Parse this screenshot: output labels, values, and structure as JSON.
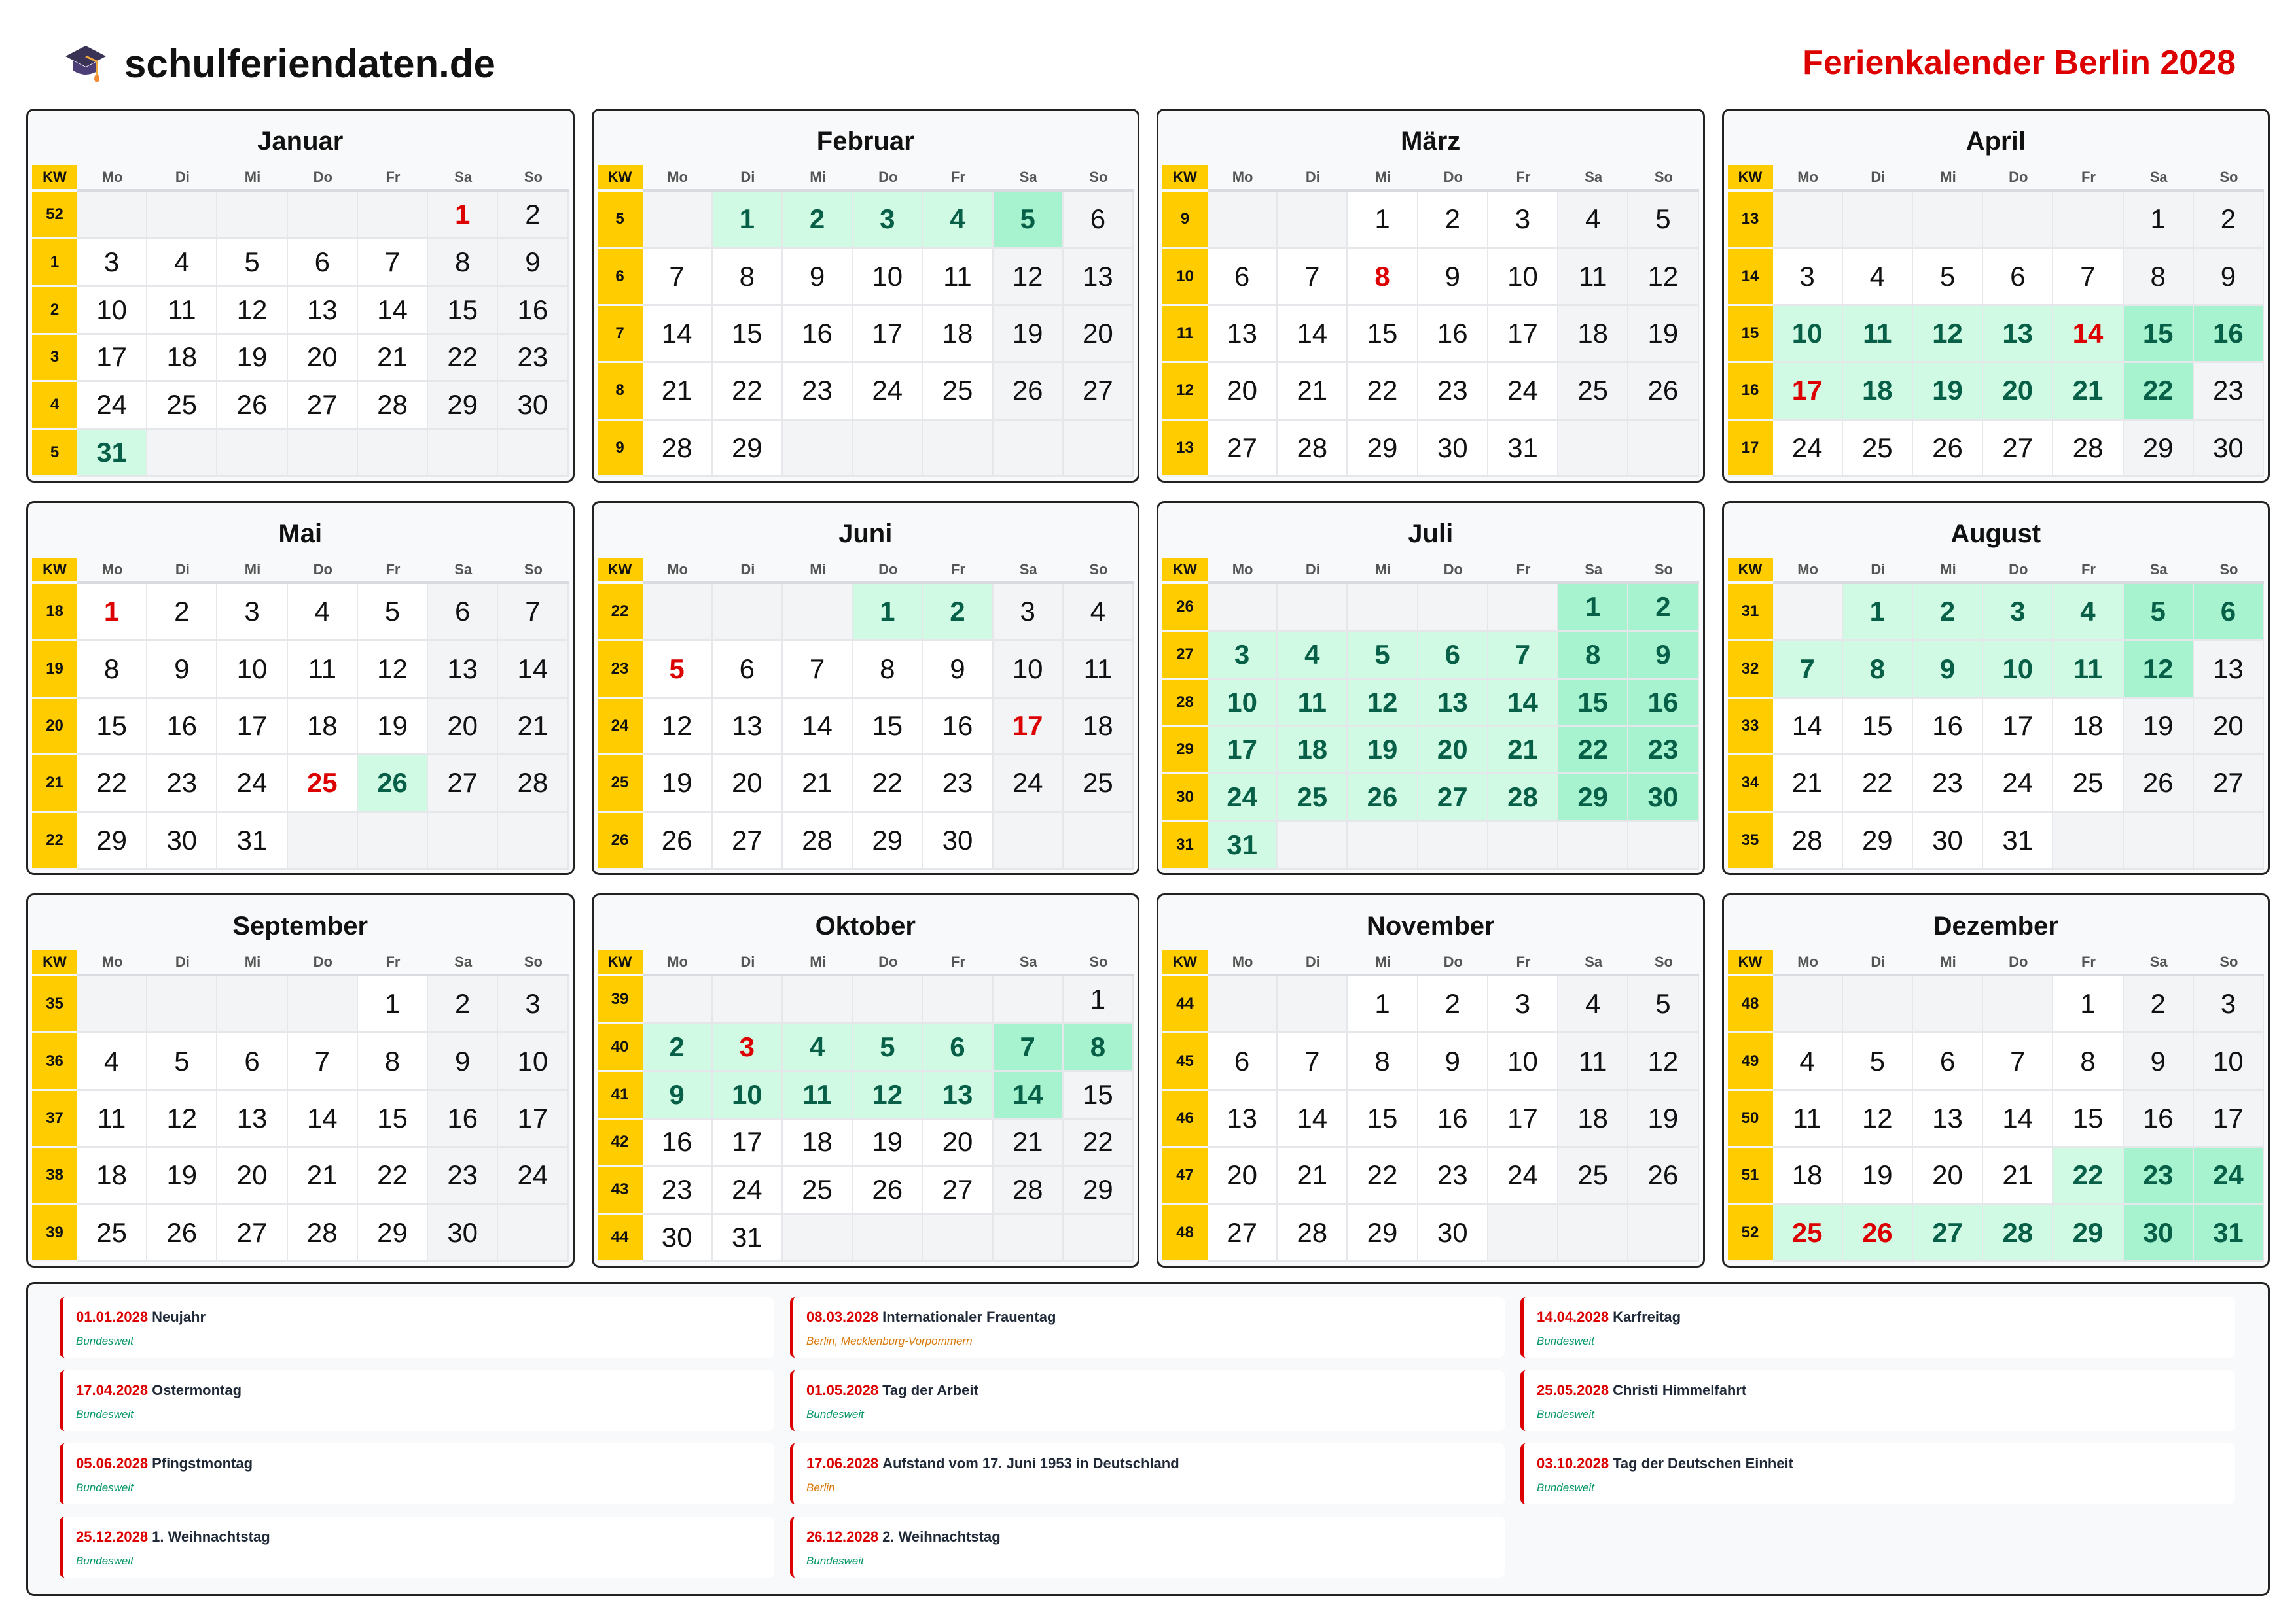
{
  "header": {
    "logo_text": "schulferiendaten.de",
    "logo_icon": "graduation-cap-icon",
    "title": "Ferienkalender Berlin 2028"
  },
  "colors": {
    "title": "#dc0000",
    "holiday": "#dc0000",
    "kw": "#ffcc00",
    "vacation": "#d1fae5",
    "vacation_weekend": "#a7f3d0",
    "vacation_text": "#065f46",
    "weekend": "#f3f4f6",
    "region_bundesweit": "#059669",
    "region_state": "#d97706"
  },
  "weekday_headers": [
    "KW",
    "Mo",
    "Di",
    "Mi",
    "Do",
    "Fr",
    "Sa",
    "So"
  ],
  "months": [
    {
      "name": "Januar",
      "vacation": [
        31
      ],
      "holidays": [
        1
      ],
      "weeks": [
        {
          "kw": "52",
          "days": [
            null,
            null,
            null,
            null,
            null,
            "1",
            "2"
          ]
        },
        {
          "kw": "1",
          "days": [
            "3",
            "4",
            "5",
            "6",
            "7",
            "8",
            "9"
          ]
        },
        {
          "kw": "2",
          "days": [
            "10",
            "11",
            "12",
            "13",
            "14",
            "15",
            "16"
          ]
        },
        {
          "kw": "3",
          "days": [
            "17",
            "18",
            "19",
            "20",
            "21",
            "22",
            "23"
          ]
        },
        {
          "kw": "4",
          "days": [
            "24",
            "25",
            "26",
            "27",
            "28",
            "29",
            "30"
          ]
        },
        {
          "kw": "5",
          "days": [
            "31",
            null,
            null,
            null,
            null,
            null,
            null
          ]
        }
      ]
    },
    {
      "name": "Februar",
      "vacation": [
        1,
        2,
        3,
        4,
        5
      ],
      "holidays": [],
      "weeks": [
        {
          "kw": "5",
          "days": [
            null,
            "1",
            "2",
            "3",
            "4",
            "5",
            "6"
          ]
        },
        {
          "kw": "6",
          "days": [
            "7",
            "8",
            "9",
            "10",
            "11",
            "12",
            "13"
          ]
        },
        {
          "kw": "7",
          "days": [
            "14",
            "15",
            "16",
            "17",
            "18",
            "19",
            "20"
          ]
        },
        {
          "kw": "8",
          "days": [
            "21",
            "22",
            "23",
            "24",
            "25",
            "26",
            "27"
          ]
        },
        {
          "kw": "9",
          "days": [
            "28",
            "29",
            null,
            null,
            null,
            null,
            null
          ]
        }
      ]
    },
    {
      "name": "März",
      "vacation": [],
      "holidays": [
        8
      ],
      "weeks": [
        {
          "kw": "9",
          "days": [
            null,
            null,
            "1",
            "2",
            "3",
            "4",
            "5"
          ]
        },
        {
          "kw": "10",
          "days": [
            "6",
            "7",
            "8",
            "9",
            "10",
            "11",
            "12"
          ]
        },
        {
          "kw": "11",
          "days": [
            "13",
            "14",
            "15",
            "16",
            "17",
            "18",
            "19"
          ]
        },
        {
          "kw": "12",
          "days": [
            "20",
            "21",
            "22",
            "23",
            "24",
            "25",
            "26"
          ]
        },
        {
          "kw": "13",
          "days": [
            "27",
            "28",
            "29",
            "30",
            "31",
            null,
            null
          ]
        }
      ]
    },
    {
      "name": "April",
      "vacation": [
        10,
        11,
        12,
        13,
        14,
        15,
        16,
        17,
        18,
        19,
        20,
        21,
        22
      ],
      "holidays": [
        14,
        17
      ],
      "weeks": [
        {
          "kw": "13",
          "days": [
            null,
            null,
            null,
            null,
            null,
            "1",
            "2"
          ]
        },
        {
          "kw": "14",
          "days": [
            "3",
            "4",
            "5",
            "6",
            "7",
            "8",
            "9"
          ]
        },
        {
          "kw": "15",
          "days": [
            "10",
            "11",
            "12",
            "13",
            "14",
            "15",
            "16"
          ]
        },
        {
          "kw": "16",
          "days": [
            "17",
            "18",
            "19",
            "20",
            "21",
            "22",
            "23"
          ]
        },
        {
          "kw": "17",
          "days": [
            "24",
            "25",
            "26",
            "27",
            "28",
            "29",
            "30"
          ]
        }
      ]
    },
    {
      "name": "Mai",
      "vacation": [
        26
      ],
      "holidays": [
        1,
        25
      ],
      "weeks": [
        {
          "kw": "18",
          "days": [
            "1",
            "2",
            "3",
            "4",
            "5",
            "6",
            "7"
          ]
        },
        {
          "kw": "19",
          "days": [
            "8",
            "9",
            "10",
            "11",
            "12",
            "13",
            "14"
          ]
        },
        {
          "kw": "20",
          "days": [
            "15",
            "16",
            "17",
            "18",
            "19",
            "20",
            "21"
          ]
        },
        {
          "kw": "21",
          "days": [
            "22",
            "23",
            "24",
            "25",
            "26",
            "27",
            "28"
          ]
        },
        {
          "kw": "22",
          "days": [
            "29",
            "30",
            "31",
            null,
            null,
            null,
            null
          ]
        }
      ]
    },
    {
      "name": "Juni",
      "vacation": [
        1,
        2
      ],
      "holidays": [
        5,
        17
      ],
      "weeks": [
        {
          "kw": "22",
          "days": [
            null,
            null,
            null,
            "1",
            "2",
            "3",
            "4"
          ]
        },
        {
          "kw": "23",
          "days": [
            "5",
            "6",
            "7",
            "8",
            "9",
            "10",
            "11"
          ]
        },
        {
          "kw": "24",
          "days": [
            "12",
            "13",
            "14",
            "15",
            "16",
            "17",
            "18"
          ]
        },
        {
          "kw": "25",
          "days": [
            "19",
            "20",
            "21",
            "22",
            "23",
            "24",
            "25"
          ]
        },
        {
          "kw": "26",
          "days": [
            "26",
            "27",
            "28",
            "29",
            "30",
            null,
            null
          ]
        }
      ]
    },
    {
      "name": "Juli",
      "vacation": [
        1,
        2,
        3,
        4,
        5,
        6,
        7,
        8,
        9,
        10,
        11,
        12,
        13,
        14,
        15,
        16,
        17,
        18,
        19,
        20,
        21,
        22,
        23,
        24,
        25,
        26,
        27,
        28,
        29,
        30,
        31
      ],
      "holidays": [],
      "weeks": [
        {
          "kw": "26",
          "days": [
            null,
            null,
            null,
            null,
            null,
            "1",
            "2"
          ]
        },
        {
          "kw": "27",
          "days": [
            "3",
            "4",
            "5",
            "6",
            "7",
            "8",
            "9"
          ]
        },
        {
          "kw": "28",
          "days": [
            "10",
            "11",
            "12",
            "13",
            "14",
            "15",
            "16"
          ]
        },
        {
          "kw": "29",
          "days": [
            "17",
            "18",
            "19",
            "20",
            "21",
            "22",
            "23"
          ]
        },
        {
          "kw": "30",
          "days": [
            "24",
            "25",
            "26",
            "27",
            "28",
            "29",
            "30"
          ]
        },
        {
          "kw": "31",
          "days": [
            "31",
            null,
            null,
            null,
            null,
            null,
            null
          ]
        }
      ]
    },
    {
      "name": "August",
      "vacation": [
        1,
        2,
        3,
        4,
        5,
        6,
        7,
        8,
        9,
        10,
        11,
        12
      ],
      "holidays": [],
      "weeks": [
        {
          "kw": "31",
          "days": [
            null,
            "1",
            "2",
            "3",
            "4",
            "5",
            "6"
          ]
        },
        {
          "kw": "32",
          "days": [
            "7",
            "8",
            "9",
            "10",
            "11",
            "12",
            "13"
          ]
        },
        {
          "kw": "33",
          "days": [
            "14",
            "15",
            "16",
            "17",
            "18",
            "19",
            "20"
          ]
        },
        {
          "kw": "34",
          "days": [
            "21",
            "22",
            "23",
            "24",
            "25",
            "26",
            "27"
          ]
        },
        {
          "kw": "35",
          "days": [
            "28",
            "29",
            "30",
            "31",
            null,
            null,
            null
          ]
        }
      ]
    },
    {
      "name": "September",
      "vacation": [],
      "holidays": [],
      "weeks": [
        {
          "kw": "35",
          "days": [
            null,
            null,
            null,
            null,
            "1",
            "2",
            "3"
          ]
        },
        {
          "kw": "36",
          "days": [
            "4",
            "5",
            "6",
            "7",
            "8",
            "9",
            "10"
          ]
        },
        {
          "kw": "37",
          "days": [
            "11",
            "12",
            "13",
            "14",
            "15",
            "16",
            "17"
          ]
        },
        {
          "kw": "38",
          "days": [
            "18",
            "19",
            "20",
            "21",
            "22",
            "23",
            "24"
          ]
        },
        {
          "kw": "39",
          "days": [
            "25",
            "26",
            "27",
            "28",
            "29",
            "30",
            null
          ]
        }
      ]
    },
    {
      "name": "Oktober",
      "vacation": [
        2,
        3,
        4,
        5,
        6,
        7,
        8,
        9,
        10,
        11,
        12,
        13,
        14
      ],
      "holidays": [
        3
      ],
      "weeks": [
        {
          "kw": "39",
          "days": [
            null,
            null,
            null,
            null,
            null,
            null,
            "1"
          ]
        },
        {
          "kw": "40",
          "days": [
            "2",
            "3",
            "4",
            "5",
            "6",
            "7",
            "8"
          ]
        },
        {
          "kw": "41",
          "days": [
            "9",
            "10",
            "11",
            "12",
            "13",
            "14",
            "15"
          ]
        },
        {
          "kw": "42",
          "days": [
            "16",
            "17",
            "18",
            "19",
            "20",
            "21",
            "22"
          ]
        },
        {
          "kw": "43",
          "days": [
            "23",
            "24",
            "25",
            "26",
            "27",
            "28",
            "29"
          ]
        },
        {
          "kw": "44",
          "days": [
            "30",
            "31",
            null,
            null,
            null,
            null,
            null
          ]
        }
      ]
    },
    {
      "name": "November",
      "vacation": [],
      "holidays": [],
      "weeks": [
        {
          "kw": "44",
          "days": [
            null,
            null,
            "1",
            "2",
            "3",
            "4",
            "5"
          ]
        },
        {
          "kw": "45",
          "days": [
            "6",
            "7",
            "8",
            "9",
            "10",
            "11",
            "12"
          ]
        },
        {
          "kw": "46",
          "days": [
            "13",
            "14",
            "15",
            "16",
            "17",
            "18",
            "19"
          ]
        },
        {
          "kw": "47",
          "days": [
            "20",
            "21",
            "22",
            "23",
            "24",
            "25",
            "26"
          ]
        },
        {
          "kw": "48",
          "days": [
            "27",
            "28",
            "29",
            "30",
            null,
            null,
            null
          ]
        }
      ]
    },
    {
      "name": "Dezember",
      "vacation": [
        22,
        23,
        24,
        25,
        26,
        27,
        28,
        29,
        30,
        31
      ],
      "holidays": [
        25,
        26
      ],
      "weeks": [
        {
          "kw": "48",
          "days": [
            null,
            null,
            null,
            null,
            "1",
            "2",
            "3"
          ]
        },
        {
          "kw": "49",
          "days": [
            "4",
            "5",
            "6",
            "7",
            "8",
            "9",
            "10"
          ]
        },
        {
          "kw": "50",
          "days": [
            "11",
            "12",
            "13",
            "14",
            "15",
            "16",
            "17"
          ]
        },
        {
          "kw": "51",
          "days": [
            "18",
            "19",
            "20",
            "21",
            "22",
            "23",
            "24"
          ]
        },
        {
          "kw": "52",
          "days": [
            "25",
            "26",
            "27",
            "28",
            "29",
            "30",
            "31"
          ]
        }
      ]
    }
  ],
  "holidays_list": [
    {
      "date": "01.01.2028",
      "name": "Neujahr",
      "region": "Bundesweit",
      "nationwide": true
    },
    {
      "date": "08.03.2028",
      "name": "Internationaler Frauentag",
      "region": "Berlin, Mecklenburg-Vorpommern",
      "nationwide": false
    },
    {
      "date": "14.04.2028",
      "name": "Karfreitag",
      "region": "Bundesweit",
      "nationwide": true
    },
    {
      "date": "17.04.2028",
      "name": "Ostermontag",
      "region": "Bundesweit",
      "nationwide": true
    },
    {
      "date": "01.05.2028",
      "name": "Tag der Arbeit",
      "region": "Bundesweit",
      "nationwide": true
    },
    {
      "date": "25.05.2028",
      "name": "Christi Himmelfahrt",
      "region": "Bundesweit",
      "nationwide": true
    },
    {
      "date": "05.06.2028",
      "name": "Pfingstmontag",
      "region": "Bundesweit",
      "nationwide": true
    },
    {
      "date": "17.06.2028",
      "name": "Aufstand vom 17. Juni 1953 in Deutschland",
      "region": "Berlin",
      "nationwide": false
    },
    {
      "date": "03.10.2028",
      "name": "Tag der Deutschen Einheit",
      "region": "Bundesweit",
      "nationwide": true
    },
    {
      "date": "25.12.2028",
      "name": "1. Weihnachtstag",
      "region": "Bundesweit",
      "nationwide": true
    },
    {
      "date": "26.12.2028",
      "name": "2. Weihnachtstag",
      "region": "Bundesweit",
      "nationwide": true
    }
  ]
}
